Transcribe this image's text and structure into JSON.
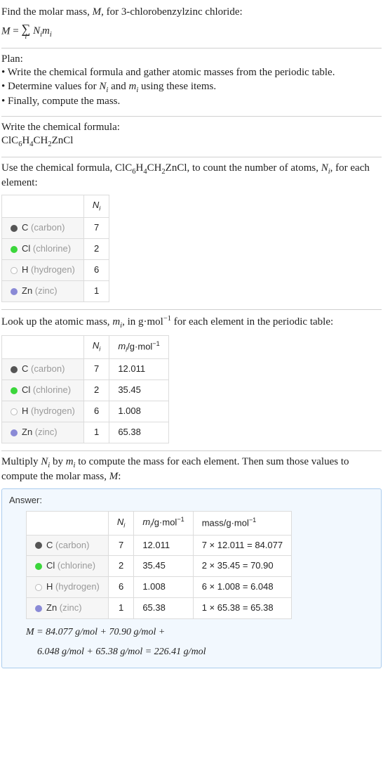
{
  "intro": {
    "line1_pre": "Find the molar mass, ",
    "line1_var": "M",
    "line1_post": ", for 3-chlorobenzylzinc chloride:",
    "formula_lhs_var": "M",
    "formula_eq": " = ",
    "sigma": "∑",
    "sigma_index": "i",
    "formula_rhs1": "N",
    "formula_rhs1_sub": "i",
    "formula_rhs2": "m",
    "formula_rhs2_sub": "i"
  },
  "plan": {
    "heading": "Plan:",
    "b1": "• Write the chemical formula and gather atomic masses from the periodic table.",
    "b2_pre": "• Determine values for ",
    "b2_v1": "N",
    "b2_v1_sub": "i",
    "b2_mid": " and ",
    "b2_v2": "m",
    "b2_v2_sub": "i",
    "b2_post": " using these items.",
    "b3": "• Finally, compute the mass."
  },
  "writeformula": {
    "heading": "Write the chemical formula:",
    "formula_parts": [
      "ClC",
      "6",
      "H",
      "4",
      "CH",
      "2",
      "ZnCl"
    ]
  },
  "useformula": {
    "text_pre": "Use the chemical formula, ",
    "text_mid": ", to count the number of atoms, ",
    "text_var": "N",
    "text_var_sub": "i",
    "text_post": ", for each element:"
  },
  "table1": {
    "header_ni": "N",
    "header_ni_sub": "i",
    "rows": [
      {
        "dot": "dot-c",
        "sym": "C",
        "name": "(carbon)",
        "n": "7"
      },
      {
        "dot": "dot-cl",
        "sym": "Cl",
        "name": "(chlorine)",
        "n": "2"
      },
      {
        "dot": "dot-h",
        "sym": "H",
        "name": "(hydrogen)",
        "n": "6"
      },
      {
        "dot": "dot-zn",
        "sym": "Zn",
        "name": "(zinc)",
        "n": "1"
      }
    ]
  },
  "lookup": {
    "text_pre": "Look up the atomic mass, ",
    "text_v": "m",
    "text_v_sub": "i",
    "text_mid": ", in g·mol",
    "text_exp": "−1",
    "text_post": " for each element in the periodic table:"
  },
  "table2": {
    "header_ni": "N",
    "header_ni_sub": "i",
    "header_mi_pre": "m",
    "header_mi_sub": "i",
    "header_mi_unit": "/g·mol",
    "header_mi_exp": "−1",
    "rows": [
      {
        "dot": "dot-c",
        "sym": "C",
        "name": "(carbon)",
        "n": "7",
        "m": "12.011"
      },
      {
        "dot": "dot-cl",
        "sym": "Cl",
        "name": "(chlorine)",
        "n": "2",
        "m": "35.45"
      },
      {
        "dot": "dot-h",
        "sym": "H",
        "name": "(hydrogen)",
        "n": "6",
        "m": "1.008"
      },
      {
        "dot": "dot-zn",
        "sym": "Zn",
        "name": "(zinc)",
        "n": "1",
        "m": "65.38"
      }
    ]
  },
  "multiply": {
    "text_pre": "Multiply ",
    "v1": "N",
    "v1_sub": "i",
    "mid1": " by ",
    "v2": "m",
    "v2_sub": "i",
    "mid2": " to compute the mass for each element. Then sum those values to compute the molar mass, ",
    "v3": "M",
    "post": ":"
  },
  "answer": {
    "label": "Answer:",
    "header_ni": "N",
    "header_ni_sub": "i",
    "header_mi_pre": "m",
    "header_mi_sub": "i",
    "header_mi_unit": "/g·mol",
    "header_mi_exp": "−1",
    "header_mass": "mass/g·mol",
    "header_mass_exp": "−1",
    "rows": [
      {
        "dot": "dot-c",
        "sym": "C",
        "name": "(carbon)",
        "n": "7",
        "m": "12.011",
        "calc": "7 × 12.011 = 84.077"
      },
      {
        "dot": "dot-cl",
        "sym": "Cl",
        "name": "(chlorine)",
        "n": "2",
        "m": "35.45",
        "calc": "2 × 35.45 = 70.90"
      },
      {
        "dot": "dot-h",
        "sym": "H",
        "name": "(hydrogen)",
        "n": "6",
        "m": "1.008",
        "calc": "6 × 1.008 = 6.048"
      },
      {
        "dot": "dot-zn",
        "sym": "Zn",
        "name": "(zinc)",
        "n": "1",
        "m": "65.38",
        "calc": "1 × 65.38 = 65.38"
      }
    ],
    "final1": "M = 84.077 g/mol + 70.90 g/mol +",
    "final2": "6.048 g/mol + 65.38 g/mol = 226.41 g/mol"
  },
  "style": {
    "body_bg": "#ffffff",
    "text_color": "#222222",
    "divider_color": "#d0d0d0",
    "table_border": "#dcdcdc",
    "lbl_bg": "#f6f6f6",
    "gray_text": "#9a9a9a",
    "answer_border": "#aaccee",
    "answer_bg": "#f2f8fe",
    "dot_colors": {
      "C": "#555555",
      "Cl": "#3bd63b",
      "H": "#ffffff",
      "Zn": "#8a8ad6"
    },
    "font_body": "Georgia, Times New Roman, serif",
    "font_sans": "Segoe UI, Arial, sans-serif",
    "font_size_body": 15,
    "font_size_table": 13
  }
}
